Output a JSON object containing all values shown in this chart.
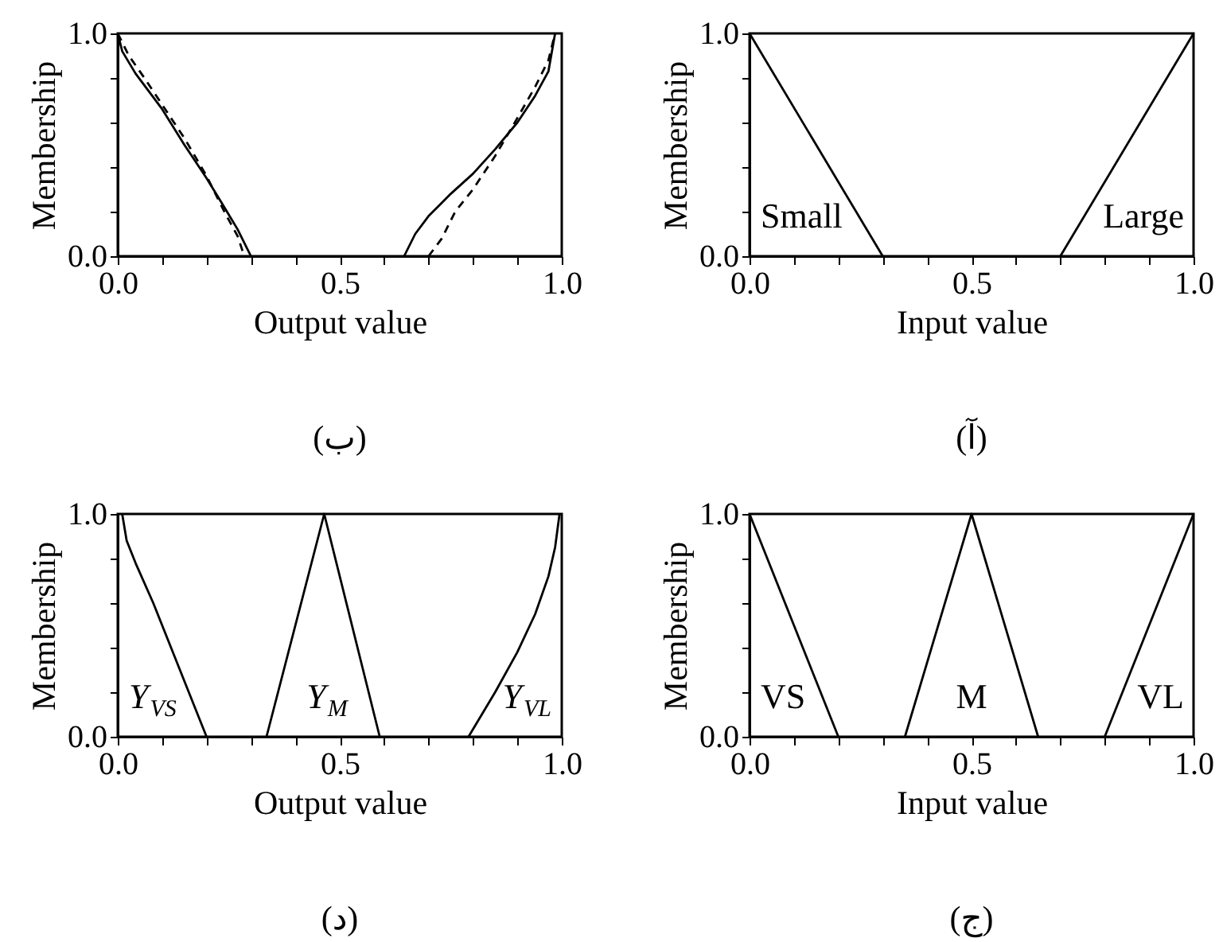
{
  "chart_data": [
    {
      "type": "line",
      "title": "(ب)",
      "xlabel": "Output value",
      "ylabel": "Membership",
      "xlim": [
        0,
        1
      ],
      "ylim": [
        0,
        1
      ],
      "grid": false,
      "xticks": [
        {
          "value": 0,
          "label": "0.0"
        },
        {
          "value": 0.1,
          "label": null
        },
        {
          "value": 0.2,
          "label": null
        },
        {
          "value": 0.3,
          "label": null
        },
        {
          "value": 0.4,
          "label": null
        },
        {
          "value": 0.5,
          "label": "0.5"
        },
        {
          "value": 0.6,
          "label": null
        },
        {
          "value": 0.7,
          "label": null
        },
        {
          "value": 0.8,
          "label": null
        },
        {
          "value": 0.9,
          "label": null
        },
        {
          "value": 1,
          "label": "1.0"
        }
      ],
      "yticks": [
        {
          "value": 0,
          "label": "0.0"
        },
        {
          "value": 0.2,
          "label": null
        },
        {
          "value": 0.4,
          "label": null
        },
        {
          "value": 0.6,
          "label": null
        },
        {
          "value": 0.8,
          "label": null
        },
        {
          "value": 1,
          "label": "1.0"
        }
      ],
      "series": [
        {
          "color": "#000000",
          "line_style": "solid",
          "x": [
            0,
            0.01,
            0.04,
            0.1,
            0.15,
            0.2,
            0.24,
            0.27,
            0.29,
            0.3
          ],
          "values": [
            1,
            0.92,
            0.82,
            0.66,
            0.5,
            0.35,
            0.22,
            0.12,
            0.04,
            0
          ]
        },
        {
          "color": "#000000",
          "line_style": "dashed",
          "x": [
            0,
            0.025,
            0.06,
            0.1,
            0.15,
            0.2,
            0.24,
            0.27,
            0.285
          ],
          "values": [
            1,
            0.9,
            0.8,
            0.68,
            0.53,
            0.36,
            0.2,
            0.09,
            0
          ]
        },
        {
          "color": "#000000",
          "line_style": "solid",
          "x": [
            0.645,
            0.67,
            0.7,
            0.75,
            0.8,
            0.85,
            0.9,
            0.94,
            0.97,
            0.985
          ],
          "values": [
            0,
            0.1,
            0.18,
            0.28,
            0.37,
            0.48,
            0.6,
            0.72,
            0.83,
            1
          ]
        },
        {
          "color": "#000000",
          "line_style": "dashed",
          "x": [
            0.7,
            0.73,
            0.76,
            0.8,
            0.85,
            0.9,
            0.94,
            0.97,
            0.985
          ],
          "values": [
            0,
            0.08,
            0.2,
            0.3,
            0.45,
            0.62,
            0.76,
            0.88,
            1
          ]
        }
      ]
    },
    {
      "type": "line",
      "title": "(آ)",
      "xlabel": "Input value",
      "ylabel": "Membership",
      "xlim": [
        0,
        1
      ],
      "ylim": [
        0,
        1
      ],
      "grid": false,
      "line_style": "solid",
      "xticks": [
        {
          "value": 0,
          "label": "0.0"
        },
        {
          "value": 0.1,
          "label": null
        },
        {
          "value": 0.2,
          "label": null
        },
        {
          "value": 0.3,
          "label": null
        },
        {
          "value": 0.4,
          "label": null
        },
        {
          "value": 0.5,
          "label": "0.5"
        },
        {
          "value": 0.6,
          "label": null
        },
        {
          "value": 0.7,
          "label": null
        },
        {
          "value": 0.8,
          "label": null
        },
        {
          "value": 0.9,
          "label": null
        },
        {
          "value": 1,
          "label": "1.0"
        }
      ],
      "yticks": [
        {
          "value": 0,
          "label": "0.0"
        },
        {
          "value": 0.2,
          "label": null
        },
        {
          "value": 0.4,
          "label": null
        },
        {
          "value": 0.6,
          "label": null
        },
        {
          "value": 0.8,
          "label": null
        },
        {
          "value": 1,
          "label": "1.0"
        }
      ],
      "series": [
        {
          "name": "Small",
          "color": "#000000",
          "x": [
            0,
            0.3
          ],
          "values": [
            1,
            0
          ]
        },
        {
          "name": "Large",
          "color": "#000000",
          "x": [
            0.7,
            1
          ],
          "values": [
            0,
            1
          ]
        }
      ]
    },
    {
      "type": "line",
      "title": "(د)",
      "xlabel": "Output value",
      "ylabel": "Membership",
      "xlim": [
        0,
        1
      ],
      "ylim": [
        0,
        1
      ],
      "grid": false,
      "line_style": "solid",
      "xticks": [
        {
          "value": 0,
          "label": "0.0"
        },
        {
          "value": 0.1,
          "label": null
        },
        {
          "value": 0.2,
          "label": null
        },
        {
          "value": 0.3,
          "label": null
        },
        {
          "value": 0.4,
          "label": null
        },
        {
          "value": 0.5,
          "label": "0.5"
        },
        {
          "value": 0.6,
          "label": null
        },
        {
          "value": 0.7,
          "label": null
        },
        {
          "value": 0.8,
          "label": null
        },
        {
          "value": 0.9,
          "label": null
        },
        {
          "value": 1,
          "label": "1.0"
        }
      ],
      "yticks": [
        {
          "value": 0,
          "label": "0.0"
        },
        {
          "value": 0.2,
          "label": null
        },
        {
          "value": 0.4,
          "label": null
        },
        {
          "value": 0.6,
          "label": null
        },
        {
          "value": 0.8,
          "label": null
        },
        {
          "value": 1,
          "label": "1.0"
        }
      ],
      "series": [
        {
          "name": "Y$_{VS}$",
          "color": "#000000",
          "x": [
            0.01,
            0.02,
            0.04,
            0.08,
            0.2
          ],
          "values": [
            1,
            0.88,
            0.78,
            0.6,
            0
          ]
        },
        {
          "name": "Y$_{M}$",
          "color": "#000000",
          "x": [
            0.335,
            0.465,
            0.59
          ],
          "values": [
            0,
            1,
            0
          ]
        },
        {
          "name": "Y$_{VL}$",
          "color": "#000000",
          "x": [
            0.79,
            0.85,
            0.9,
            0.94,
            0.97,
            0.985,
            0.995
          ],
          "values": [
            0,
            0.2,
            0.38,
            0.55,
            0.72,
            0.85,
            1
          ]
        }
      ]
    },
    {
      "type": "line",
      "title": "(ج)",
      "xlabel": "Input value",
      "ylabel": "Membership",
      "xlim": [
        0,
        1
      ],
      "ylim": [
        0,
        1
      ],
      "grid": false,
      "line_style": "solid",
      "xticks": [
        {
          "value": 0,
          "label": "0.0"
        },
        {
          "value": 0.1,
          "label": null
        },
        {
          "value": 0.2,
          "label": null
        },
        {
          "value": 0.3,
          "label": null
        },
        {
          "value": 0.4,
          "label": null
        },
        {
          "value": 0.5,
          "label": "0.5"
        },
        {
          "value": 0.6,
          "label": null
        },
        {
          "value": 0.7,
          "label": null
        },
        {
          "value": 0.8,
          "label": null
        },
        {
          "value": 0.9,
          "label": null
        },
        {
          "value": 1,
          "label": "1.0"
        }
      ],
      "yticks": [
        {
          "value": 0,
          "label": "0.0"
        },
        {
          "value": 0.2,
          "label": null
        },
        {
          "value": 0.4,
          "label": null
        },
        {
          "value": 0.6,
          "label": null
        },
        {
          "value": 0.8,
          "label": null
        },
        {
          "value": 1,
          "label": "1.0"
        }
      ],
      "series": [
        {
          "name": "VS",
          "color": "#000000",
          "x": [
            0,
            0.2
          ],
          "values": [
            1,
            0
          ]
        },
        {
          "name": "M",
          "color": "#000000",
          "x": [
            0.35,
            0.5,
            0.65
          ],
          "values": [
            0,
            1,
            0
          ]
        },
        {
          "name": "VL",
          "color": "#000000",
          "x": [
            0.8,
            1
          ],
          "values": [
            0,
            1
          ]
        }
      ]
    }
  ]
}
